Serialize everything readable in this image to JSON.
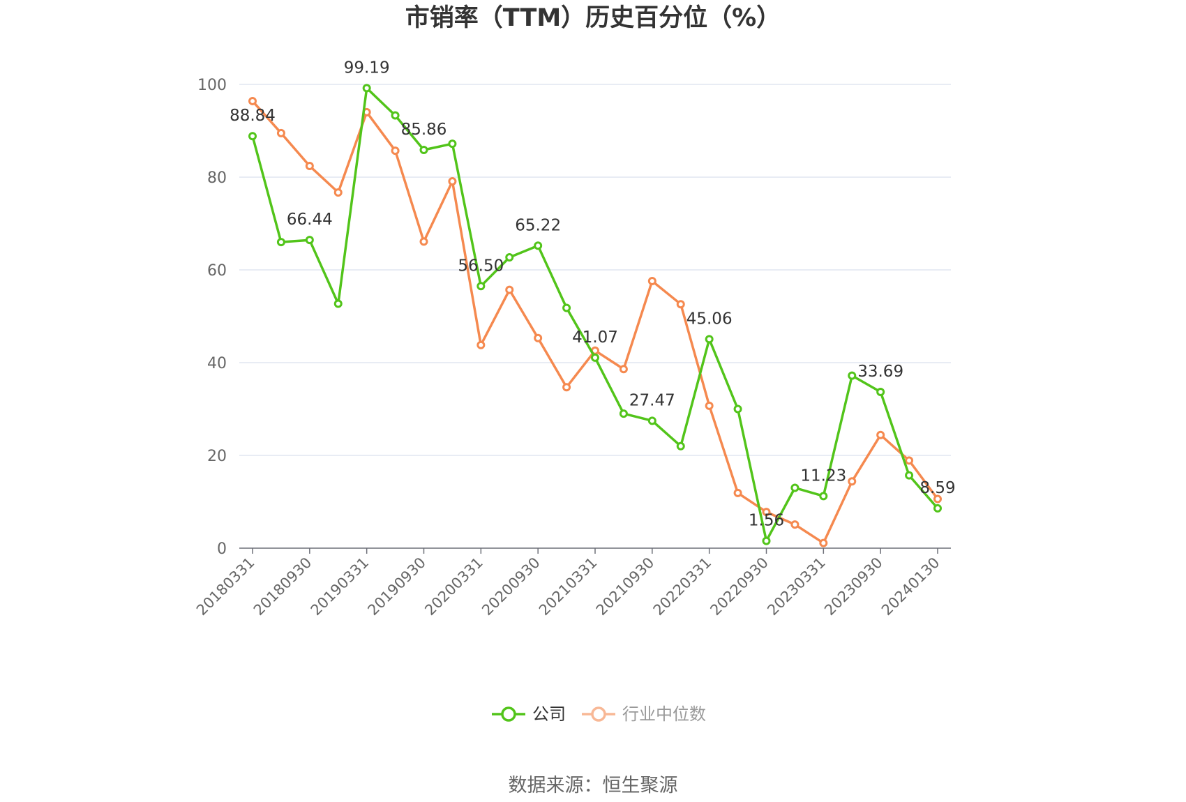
{
  "chart_data": {
    "type": "line",
    "title": "市销率（TTM）历史百分位（%）",
    "source": "数据来源：恒生聚源",
    "ylim": [
      0,
      100
    ],
    "yticks": [
      0,
      20,
      40,
      60,
      80,
      100
    ],
    "grid": true,
    "legend_position": "bottom",
    "x_tick_labels": [
      "20180331",
      "20180930",
      "20190331",
      "20190930",
      "20200331",
      "20200930",
      "20210331",
      "20210930",
      "20220331",
      "20220930",
      "20230331",
      "20230930",
      "20240130"
    ],
    "series": [
      {
        "name": "公司",
        "color": "#52c41a",
        "values": [
          88.84,
          66.0,
          66.44,
          52.7,
          99.19,
          93.3,
          85.86,
          87.2,
          56.5,
          62.7,
          65.22,
          51.8,
          41.07,
          29.0,
          27.47,
          22.0,
          45.06,
          30.0,
          1.56,
          13.0,
          11.23,
          37.2,
          33.69,
          15.7,
          8.59
        ]
      },
      {
        "name": "行业中位数",
        "color": "#f5894f",
        "values": [
          96.4,
          89.5,
          82.4,
          76.7,
          94.0,
          85.7,
          66.1,
          79.1,
          43.8,
          55.7,
          45.3,
          34.7,
          42.6,
          38.6,
          57.6,
          52.6,
          30.7,
          11.9,
          7.8,
          5.1,
          1.1,
          14.4,
          24.4,
          18.9,
          10.6
        ]
      }
    ],
    "data_labels": [
      {
        "index": 0,
        "text": "88.84"
      },
      {
        "index": 2,
        "text": "66.44"
      },
      {
        "index": 4,
        "text": "99.19"
      },
      {
        "index": 6,
        "text": "85.86"
      },
      {
        "index": 8,
        "text": "56.50"
      },
      {
        "index": 10,
        "text": "65.22"
      },
      {
        "index": 12,
        "text": "41.07"
      },
      {
        "index": 14,
        "text": "27.47"
      },
      {
        "index": 16,
        "text": "45.06"
      },
      {
        "index": 18,
        "text": "1.56"
      },
      {
        "index": 20,
        "text": "11.23"
      },
      {
        "index": 22,
        "text": "33.69"
      },
      {
        "index": 24,
        "text": "8.59"
      }
    ]
  }
}
